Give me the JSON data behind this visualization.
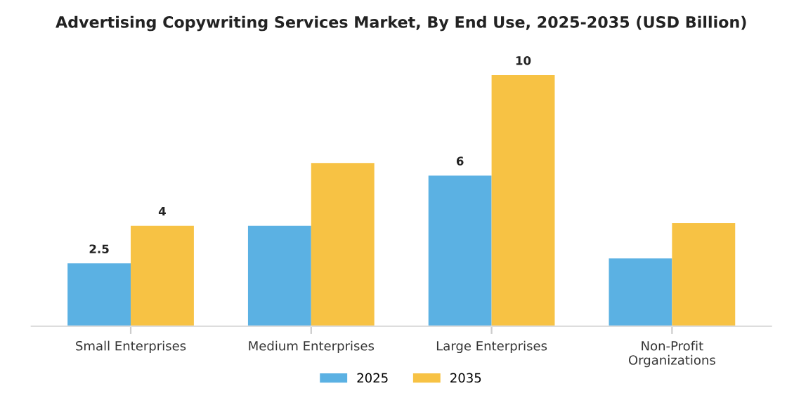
{
  "chart_data": {
    "type": "bar",
    "title": "Advertising Copywriting Services Market, By End Use, 2025-2035 (USD Billion)",
    "categories": [
      "Small Enterprises",
      "Medium Enterprises",
      "Large Enterprises",
      "Non-Profit\nOrganizations"
    ],
    "series": [
      {
        "name": "2025",
        "color": "#5bb1e3",
        "values": [
          2.5,
          4,
          6,
          2.7
        ],
        "value_labels": [
          "2.5",
          null,
          "6",
          null
        ]
      },
      {
        "name": "2035",
        "color": "#f7c244",
        "values": [
          4,
          6.5,
          10,
          4.1
        ],
        "value_labels": [
          "4",
          null,
          "10",
          null
        ]
      }
    ],
    "legend": "bottom",
    "grid": false
  }
}
